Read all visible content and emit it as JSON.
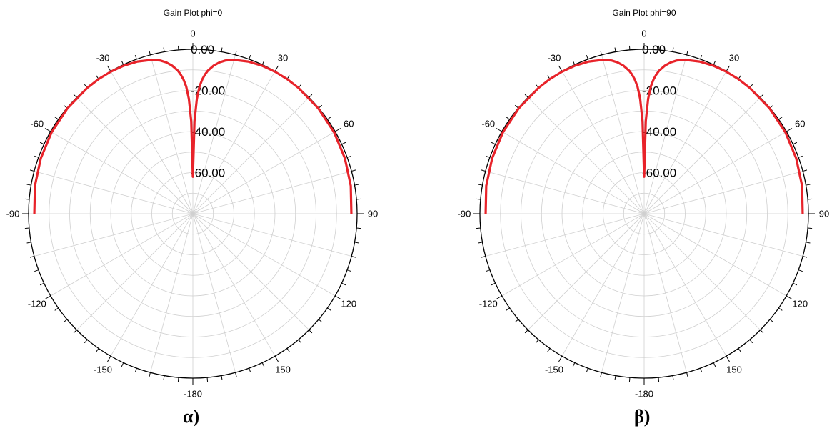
{
  "chart_data": [
    {
      "type": "polar-line",
      "title": "Gain Plot phi=0",
      "caption": "α)",
      "angle_ticks": [
        0,
        30,
        60,
        90,
        120,
        150,
        -180,
        -150,
        -120,
        -90,
        -60,
        -30
      ],
      "radial_ticks": [
        "0.00",
        "-20.00",
        "-40.00",
        "-60.00"
      ],
      "rlim": [
        -80,
        0
      ],
      "grid": true,
      "series": [
        {
          "color": "#e8232a",
          "theta_deg": [
            -90,
            -80,
            -70,
            -60,
            -50,
            -40,
            -35,
            -30,
            -25,
            -20,
            -15,
            -12,
            -10,
            -8,
            -6,
            -5,
            -4,
            -3,
            -2,
            -1,
            0,
            1,
            2,
            3,
            4,
            5,
            6,
            8,
            10,
            12,
            15,
            20,
            25,
            30,
            35,
            40,
            50,
            60,
            70,
            80,
            90
          ],
          "gain_db": [
            -2.8,
            -1.9,
            -1.2,
            -0.6,
            -0.25,
            -0.05,
            0,
            -0.15,
            -0.5,
            -1.2,
            -2.5,
            -3.8,
            -5.2,
            -7.2,
            -10,
            -12,
            -14.5,
            -18,
            -24,
            -35,
            -62,
            -35,
            -24,
            -18,
            -14.5,
            -12,
            -10,
            -7.2,
            -5.2,
            -3.8,
            -2.5,
            -1.2,
            -0.5,
            -0.15,
            0,
            -0.05,
            -0.25,
            -0.6,
            -1.2,
            -1.9,
            -2.8
          ]
        }
      ]
    },
    {
      "type": "polar-line",
      "title": "Gain Plot phi=90",
      "caption": "β)",
      "angle_ticks": [
        0,
        30,
        60,
        90,
        120,
        150,
        -180,
        -150,
        -120,
        -90,
        -60,
        -30
      ],
      "radial_ticks": [
        "0.00",
        "-20.00",
        "-40.00",
        "-60.00"
      ],
      "rlim": [
        -80,
        0
      ],
      "grid": true,
      "series": [
        {
          "color": "#e8232a",
          "theta_deg": [
            -90,
            -80,
            -70,
            -60,
            -50,
            -40,
            -35,
            -30,
            -25,
            -20,
            -15,
            -12,
            -10,
            -8,
            -6,
            -5,
            -4,
            -3,
            -2,
            -1,
            0,
            1,
            2,
            3,
            4,
            5,
            6,
            8,
            10,
            12,
            15,
            20,
            25,
            30,
            35,
            40,
            50,
            60,
            70,
            80,
            90
          ],
          "gain_db": [
            -2.8,
            -1.9,
            -1.2,
            -0.6,
            -0.25,
            -0.05,
            0,
            -0.15,
            -0.5,
            -1.2,
            -2.5,
            -3.8,
            -5.2,
            -7.2,
            -10,
            -12,
            -14.5,
            -18,
            -24,
            -35,
            -62,
            -35,
            -24,
            -18,
            -14.5,
            -12,
            -10,
            -7.2,
            -5.2,
            -3.8,
            -2.5,
            -1.2,
            -0.5,
            -0.15,
            0,
            -0.05,
            -0.25,
            -0.6,
            -1.2,
            -1.9,
            -2.8
          ]
        }
      ]
    }
  ]
}
